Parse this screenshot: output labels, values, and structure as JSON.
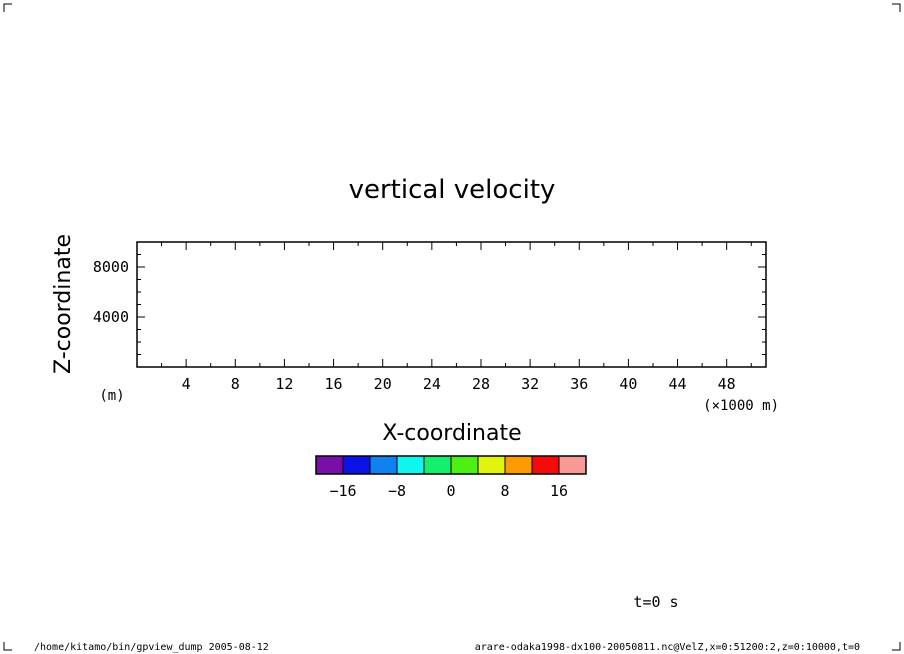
{
  "chart_data": {
    "type": "heatmap",
    "title": "vertical velocity",
    "xlabel": "X-coordinate",
    "xunit": "(×1000 m)",
    "ylabel": "Z-coordinate",
    "yunit": "(m)",
    "xlim": [
      0,
      51.2
    ],
    "ylim": [
      0,
      10000
    ],
    "x_ticks": [
      4,
      8,
      12,
      16,
      20,
      24,
      28,
      32,
      36,
      40,
      44,
      48
    ],
    "y_ticks": [
      4000,
      8000
    ],
    "values": [],
    "colorbar": {
      "colors": [
        "#7a0fa8",
        "#0a12e6",
        "#0f82f0",
        "#0ff6ee",
        "#14f06e",
        "#4ef014",
        "#e0f40f",
        "#ff9a00",
        "#f50a0a",
        "#f79a96"
      ],
      "tick_labels": [
        "−16",
        "−8",
        "0",
        "8",
        "16"
      ]
    },
    "annotation": "t=0 s"
  },
  "footer": {
    "left": "/home/kitamo/bin/gpview_dump  2005-08-12",
    "right": "arare-odaka1998-dx100-20050811.nc@VelZ,x=0:51200:2,z=0:10000,t=0"
  },
  "colors": {
    "ink": "#000000",
    "background": "#ffffff"
  }
}
